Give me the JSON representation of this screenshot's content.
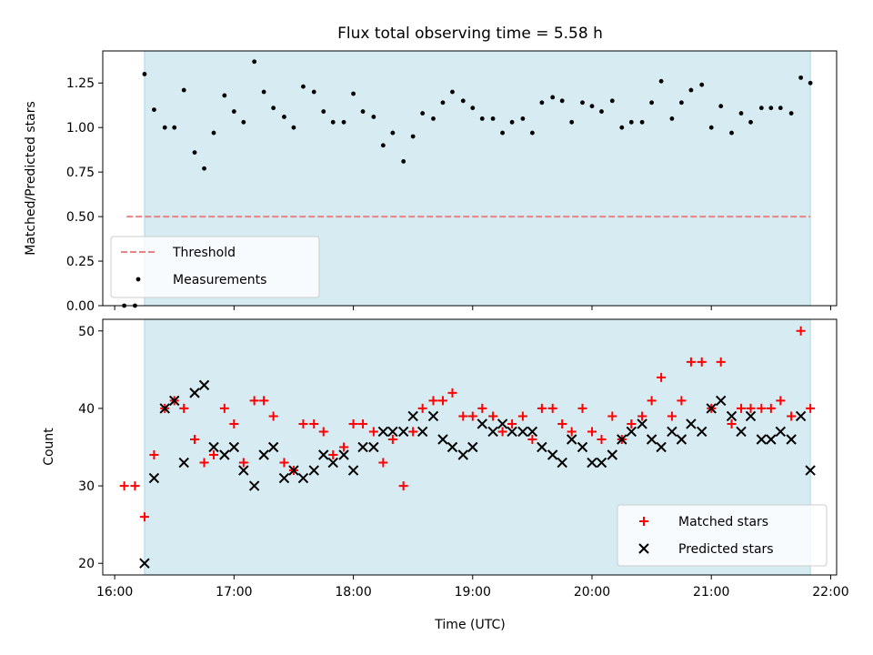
{
  "chart_data": [
    {
      "type": "scatter",
      "title": "Flux total observing time = 5.58 h",
      "ylabel": "Matched/Predicted stars",
      "xlabel": "",
      "x_unit": "hours UTC",
      "xlim": [
        15.9,
        22.05
      ],
      "ylim": [
        0.0,
        1.43
      ],
      "yticks": [
        0.0,
        0.25,
        0.5,
        0.75,
        1.0,
        1.25
      ],
      "ytick_labels": [
        "0.00",
        "0.25",
        "0.50",
        "0.75",
        "1.00",
        "1.25"
      ],
      "xticks": [
        16,
        17,
        18,
        19,
        20,
        21,
        22
      ],
      "grid": false,
      "legend": "lower-left",
      "observing_span": [
        16.25,
        21.83
      ],
      "threshold": {
        "name": "Threshold",
        "y": 0.5,
        "x": [
          16.1,
          21.83
        ],
        "color": "#f08080",
        "style": "dashed"
      },
      "series": [
        {
          "name": "Measurements",
          "color": "#000000",
          "marker": "dot",
          "x": [
            16.08,
            16.17,
            16.25,
            16.33,
            16.42,
            16.5,
            16.58,
            16.67,
            16.75,
            16.83,
            16.92,
            17.0,
            17.08,
            17.17,
            17.25,
            17.33,
            17.42,
            17.5,
            17.58,
            17.67,
            17.75,
            17.83,
            17.92,
            18.0,
            18.08,
            18.17,
            18.25,
            18.33,
            18.42,
            18.5,
            18.58,
            18.67,
            18.75,
            18.83,
            18.92,
            19.0,
            19.08,
            19.17,
            19.25,
            19.33,
            19.42,
            19.5,
            19.58,
            19.67,
            19.75,
            19.83,
            19.92,
            20.0,
            20.08,
            20.17,
            20.25,
            20.33,
            20.42,
            20.5,
            20.58,
            20.67,
            20.75,
            20.83,
            20.92,
            21.0,
            21.08,
            21.17,
            21.25,
            21.33,
            21.42,
            21.5,
            21.58,
            21.67,
            21.75,
            21.83
          ],
          "y": [
            0.0,
            0.0,
            1.3,
            1.1,
            1.0,
            1.0,
            1.21,
            0.86,
            0.77,
            0.97,
            1.18,
            1.09,
            1.03,
            1.37,
            1.2,
            1.11,
            1.06,
            1.0,
            1.23,
            1.2,
            1.09,
            1.03,
            1.03,
            1.19,
            1.09,
            1.06,
            0.9,
            0.97,
            0.81,
            0.95,
            1.08,
            1.05,
            1.14,
            1.2,
            1.15,
            1.11,
            1.05,
            1.05,
            0.97,
            1.03,
            1.05,
            0.97,
            1.14,
            1.17,
            1.15,
            1.03,
            1.14,
            1.12,
            1.09,
            1.15,
            1.0,
            1.03,
            1.03,
            1.14,
            1.26,
            1.05,
            1.14,
            1.21,
            1.24,
            1.0,
            1.12,
            0.97,
            1.08,
            1.03,
            1.11,
            1.11,
            1.11,
            1.08,
            1.28,
            1.25
          ]
        }
      ]
    },
    {
      "type": "scatter",
      "title": "",
      "ylabel": "Count",
      "xlabel": "Time (UTC)",
      "x_unit": "hours UTC",
      "xlim": [
        15.9,
        22.05
      ],
      "ylim": [
        18.5,
        51.5
      ],
      "yticks": [
        20,
        30,
        40,
        50
      ],
      "ytick_labels": [
        "20",
        "30",
        "40",
        "50"
      ],
      "xticks": [
        16,
        17,
        18,
        19,
        20,
        21,
        22
      ],
      "xtick_labels": [
        "16:00",
        "17:00",
        "18:00",
        "19:00",
        "20:00",
        "21:00",
        "22:00"
      ],
      "grid": false,
      "legend": "lower-right",
      "observing_span": [
        16.25,
        21.83
      ],
      "series": [
        {
          "name": "Matched stars",
          "color": "#ff0000",
          "marker": "plus",
          "x": [
            16.08,
            16.17,
            16.25,
            16.33,
            16.42,
            16.5,
            16.58,
            16.67,
            16.75,
            16.83,
            16.92,
            17.0,
            17.08,
            17.17,
            17.25,
            17.33,
            17.42,
            17.5,
            17.58,
            17.67,
            17.75,
            17.83,
            17.92,
            18.0,
            18.08,
            18.17,
            18.25,
            18.33,
            18.42,
            18.5,
            18.58,
            18.67,
            18.75,
            18.83,
            18.92,
            19.0,
            19.08,
            19.17,
            19.25,
            19.33,
            19.42,
            19.5,
            19.58,
            19.67,
            19.75,
            19.83,
            19.92,
            20.0,
            20.08,
            20.17,
            20.25,
            20.33,
            20.42,
            20.5,
            20.58,
            20.67,
            20.75,
            20.83,
            20.92,
            21.0,
            21.08,
            21.17,
            21.25,
            21.33,
            21.42,
            21.5,
            21.58,
            21.67,
            21.75,
            21.83
          ],
          "y": [
            30,
            30,
            26,
            34,
            40,
            41,
            40,
            36,
            33,
            34,
            40,
            38,
            33,
            41,
            41,
            39,
            33,
            32,
            38,
            38,
            37,
            34,
            35,
            38,
            38,
            37,
            33,
            36,
            30,
            37,
            40,
            41,
            41,
            42,
            39,
            39,
            40,
            39,
            37,
            38,
            39,
            36,
            40,
            40,
            38,
            37,
            40,
            37,
            36,
            39,
            36,
            38,
            39,
            41,
            44,
            39,
            41,
            46,
            46,
            40,
            46,
            38,
            40,
            40,
            40,
            40,
            41,
            39,
            50,
            40
          ]
        },
        {
          "name": "Predicted stars",
          "color": "#000000",
          "marker": "x",
          "x": [
            16.25,
            16.33,
            16.42,
            16.5,
            16.58,
            16.67,
            16.75,
            16.83,
            16.92,
            17.0,
            17.08,
            17.17,
            17.25,
            17.33,
            17.42,
            17.5,
            17.58,
            17.67,
            17.75,
            17.83,
            17.92,
            18.0,
            18.08,
            18.17,
            18.25,
            18.33,
            18.42,
            18.5,
            18.58,
            18.67,
            18.75,
            18.83,
            18.92,
            19.0,
            19.08,
            19.17,
            19.25,
            19.33,
            19.42,
            19.5,
            19.58,
            19.67,
            19.75,
            19.83,
            19.92,
            20.0,
            20.08,
            20.17,
            20.25,
            20.33,
            20.42,
            20.5,
            20.58,
            20.67,
            20.75,
            20.83,
            20.92,
            21.0,
            21.08,
            21.17,
            21.25,
            21.33,
            21.42,
            21.5,
            21.58,
            21.67,
            21.75,
            21.83
          ],
          "y": [
            20,
            31,
            40,
            41,
            33,
            42,
            43,
            35,
            34,
            35,
            32,
            30,
            34,
            35,
            31,
            32,
            31,
            32,
            34,
            33,
            34,
            32,
            35,
            35,
            37,
            37,
            37,
            39,
            37,
            39,
            36,
            35,
            34,
            35,
            38,
            37,
            38,
            37,
            37,
            37,
            35,
            34,
            33,
            36,
            35,
            33,
            33,
            34,
            36,
            37,
            38,
            36,
            35,
            37,
            36,
            38,
            37,
            40,
            41,
            39,
            37,
            39,
            36,
            36,
            37,
            36,
            39,
            32
          ]
        }
      ]
    }
  ]
}
